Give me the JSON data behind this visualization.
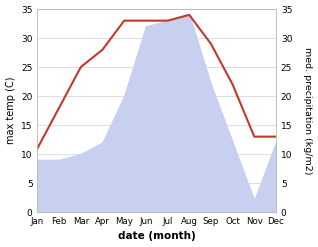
{
  "months": [
    "Jan",
    "Feb",
    "Mar",
    "Apr",
    "May",
    "Jun",
    "Jul",
    "Aug",
    "Sep",
    "Oct",
    "Nov",
    "Dec"
  ],
  "temperature": [
    11,
    18,
    25,
    28,
    33,
    33,
    33,
    34,
    29,
    22,
    13,
    13
  ],
  "precipitation": [
    9,
    9,
    10,
    12,
    20,
    32,
    33,
    34,
    22,
    12,
    2,
    12
  ],
  "temp_color": "#c0392b",
  "precip_fill_color": "#c8d0f0",
  "ylim": [
    0,
    35
  ],
  "ylabel_left": "max temp (C)",
  "ylabel_right": "med. precipitation (kg/m2)",
  "xlabel": "date (month)",
  "bg_color": "#ffffff",
  "grid_color": "#d0d0d0",
  "yticks": [
    0,
    5,
    10,
    15,
    20,
    25,
    30,
    35
  ]
}
